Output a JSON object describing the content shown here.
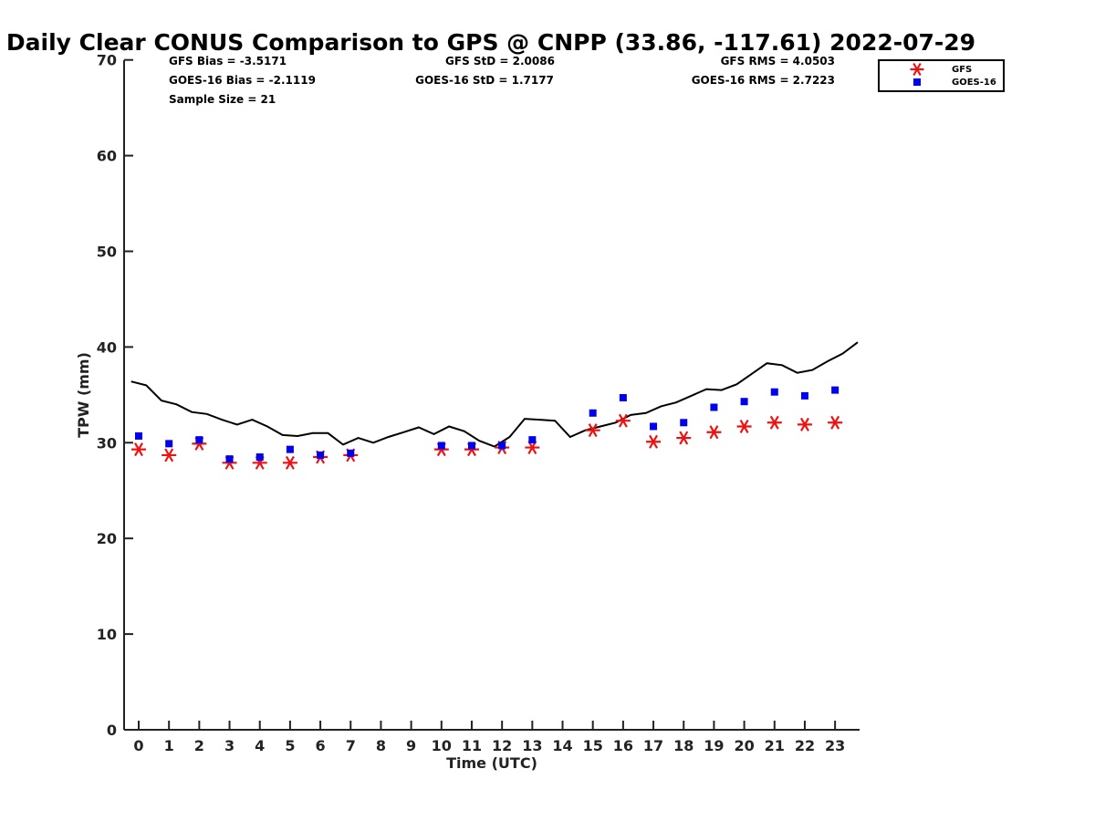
{
  "chart_data": {
    "type": "scatter",
    "title": "Daily Clear CONUS Comparison to GPS @ CNPP (33.86, -117.61) 2022-07-29",
    "xlabel": "Time (UTC)",
    "ylabel": "TPW (mm)",
    "xlim": [
      -0.5,
      23.75
    ],
    "ylim": [
      0,
      70
    ],
    "xticks": [
      0,
      1,
      2,
      3,
      4,
      5,
      6,
      7,
      8,
      9,
      10,
      11,
      12,
      13,
      14,
      15,
      16,
      17,
      18,
      19,
      20,
      21,
      22,
      23
    ],
    "yticks": [
      0,
      10,
      20,
      30,
      40,
      50,
      60,
      70
    ],
    "grid": false,
    "legend_position": "top-right",
    "stats": {
      "gfs_bias": "GFS Bias = -3.5171",
      "goes_bias": "GOES-16 Bias = -2.1119",
      "sample_size": "Sample Size = 21",
      "gfs_std": "GFS StD = 2.0086",
      "goes_std": "GOES-16 StD = 1.7177",
      "gfs_rms": "GFS RMS = 4.0503",
      "goes_rms": "GOES-16 RMS = 2.7223"
    },
    "series": [
      {
        "name": "GFS",
        "marker": "asterisk",
        "color": "#ee1111",
        "x": [
          0,
          1,
          2,
          3,
          4,
          5,
          6,
          7,
          10,
          11,
          12,
          13,
          15,
          16,
          17,
          18,
          19,
          20,
          21,
          22,
          23
        ],
        "y": [
          29.3,
          28.7,
          29.9,
          27.9,
          27.9,
          27.9,
          28.5,
          28.7,
          29.3,
          29.3,
          29.5,
          29.5,
          31.3,
          32.3,
          30.1,
          30.5,
          31.1,
          31.7,
          32.1,
          31.9,
          32.1
        ]
      },
      {
        "name": "GOES-16",
        "marker": "square",
        "color": "#0000ee",
        "x": [
          0,
          1,
          2,
          3,
          4,
          5,
          6,
          7,
          10,
          11,
          12,
          13,
          15,
          16,
          17,
          18,
          19,
          20,
          21,
          22,
          23
        ],
        "y": [
          30.7,
          29.9,
          30.3,
          28.3,
          28.5,
          29.3,
          28.7,
          28.9,
          29.7,
          29.7,
          29.7,
          30.3,
          33.1,
          34.7,
          31.7,
          32.1,
          33.7,
          34.3,
          35.3,
          34.9,
          35.5
        ]
      },
      {
        "marker": "line",
        "color": "#000000",
        "x": [
          -0.25,
          0.25,
          0.75,
          1.25,
          1.75,
          2.25,
          2.75,
          3.25,
          3.75,
          4.25,
          4.75,
          5.25,
          5.75,
          6.25,
          6.75,
          7.25,
          7.75,
          8.25,
          8.75,
          9.25,
          9.75,
          10.25,
          10.75,
          11.25,
          11.75,
          12.25,
          12.75,
          13.25,
          13.75,
          14.25,
          14.75,
          15.25,
          15.75,
          16.25,
          16.75,
          17.25,
          17.75,
          18.25,
          18.75,
          19.25,
          19.75,
          20.25,
          20.75,
          21.25,
          21.75,
          22.25,
          22.75,
          23.25,
          23.75
        ],
        "y": [
          36.4,
          36.0,
          34.4,
          34.0,
          33.2,
          33.0,
          32.4,
          31.9,
          32.4,
          31.7,
          30.8,
          30.7,
          31.0,
          31.0,
          29.8,
          30.5,
          30.0,
          30.6,
          31.1,
          31.6,
          30.9,
          31.7,
          31.2,
          30.2,
          29.6,
          30.6,
          32.5,
          32.4,
          32.3,
          30.6,
          31.3,
          31.7,
          32.1,
          32.9,
          33.1,
          33.8,
          34.2,
          34.9,
          35.6,
          35.5,
          36.1,
          37.2,
          38.3,
          38.1,
          37.3,
          37.6,
          38.5,
          39.3,
          40.5
        ]
      }
    ]
  }
}
